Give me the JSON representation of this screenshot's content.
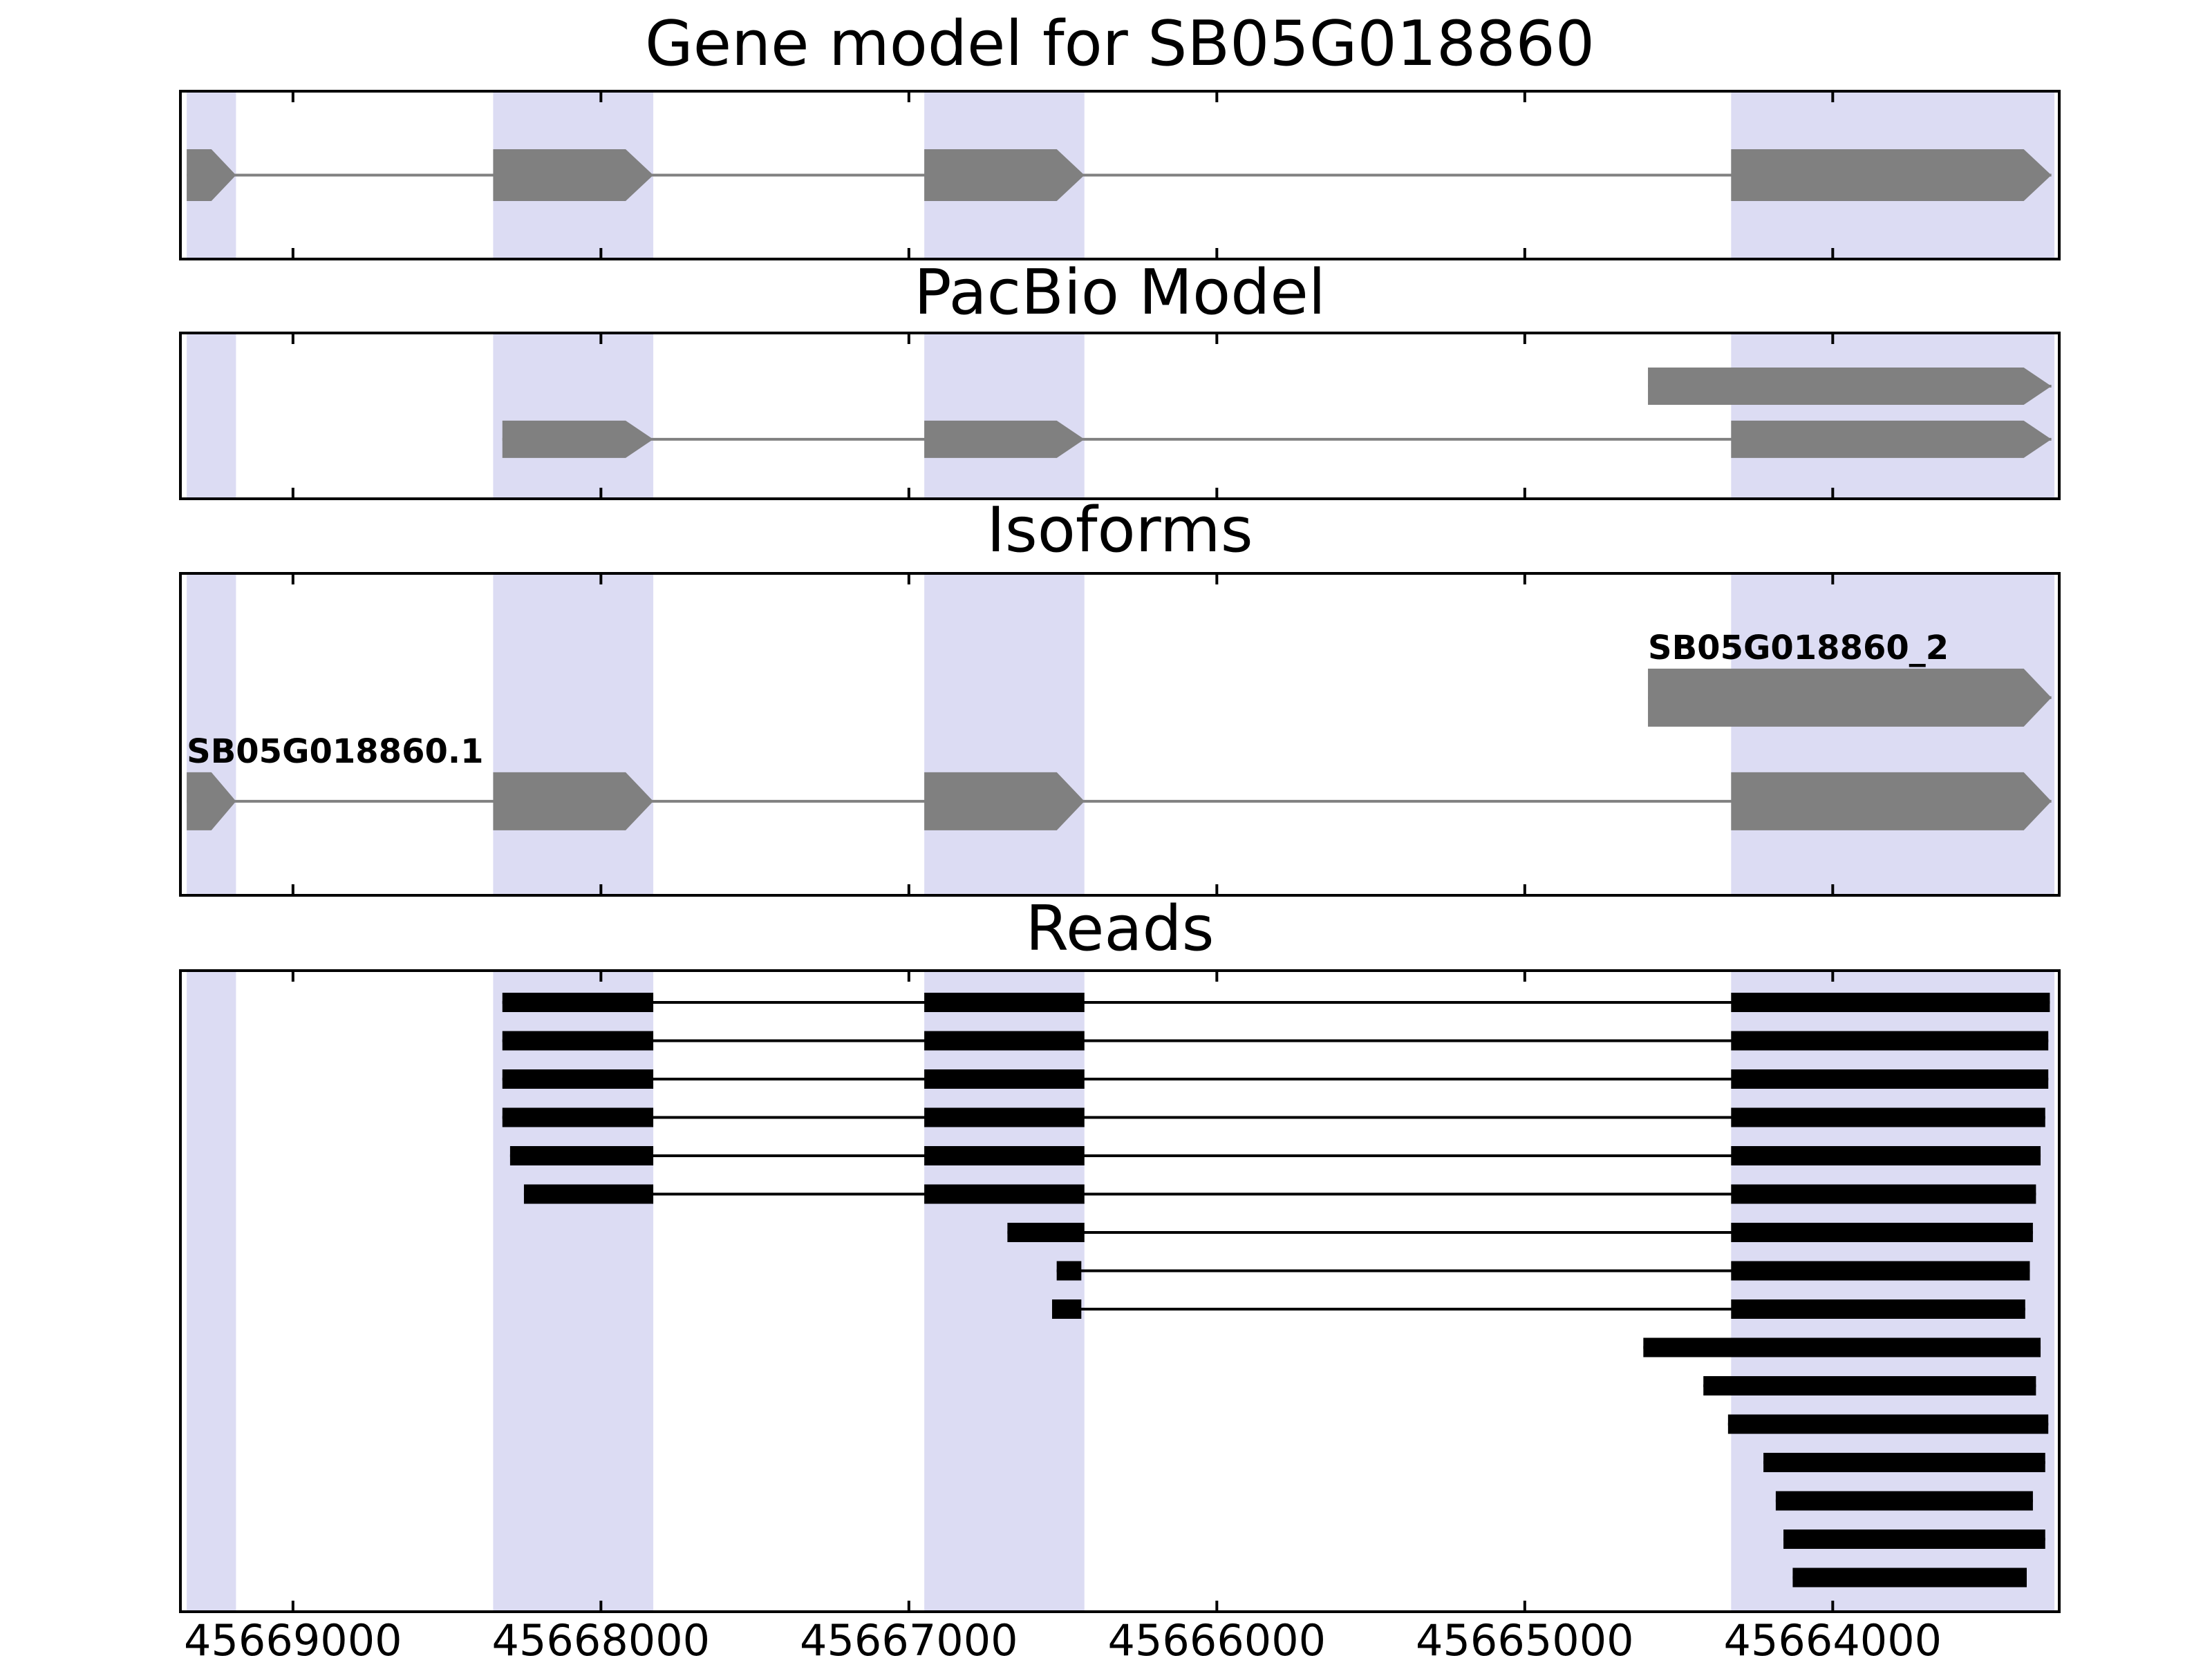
{
  "colors": {
    "exon": "#808080",
    "intron_line": "#808080",
    "read": "#000000",
    "highlight": "#dcdcf3",
    "axis": "#000000",
    "background": "#ffffff"
  },
  "axis": {
    "domain_min": 45663260,
    "domain_max": 45669370,
    "reversed": true,
    "ticks": [
      45669000,
      45668000,
      45667000,
      45666000,
      45665000,
      45664000
    ],
    "tick_labels": [
      "45669000",
      "45668000",
      "45667000",
      "45666000",
      "45665000",
      "45664000"
    ]
  },
  "highlight_regions": [
    {
      "start": 45669345,
      "end": 45669185
    },
    {
      "start": 45668350,
      "end": 45667830
    },
    {
      "start": 45666950,
      "end": 45666430
    },
    {
      "start": 45664330,
      "end": 45663280
    }
  ],
  "chart_data": [
    {
      "type": "gene_model",
      "title": "Gene model for SB05G018860",
      "features": [
        {
          "name": "SB05G018860",
          "label": "",
          "row": 0.5,
          "exons": [
            [
              45669345,
              45669185
            ],
            [
              45668350,
              45667830
            ],
            [
              45666950,
              45666430
            ],
            [
              45664330,
              45663290
            ]
          ]
        }
      ]
    },
    {
      "type": "transcripts",
      "title": "PacBio Model",
      "features": [
        {
          "name": "pacbio_model_short",
          "label": "",
          "row": 0.324,
          "exons": [
            [
              45664600,
              45663290
            ]
          ]
        },
        {
          "name": "pacbio_model_long",
          "label": "",
          "row": 0.639,
          "exons": [
            [
              45668320,
              45667830
            ],
            [
              45666950,
              45666430
            ],
            [
              45664330,
              45663290
            ]
          ]
        }
      ]
    },
    {
      "type": "transcripts",
      "title": "Isoforms",
      "features": [
        {
          "name": "SB05G018860_2",
          "label": "SB05G018860_2",
          "row": 0.387,
          "exons": [
            [
              45664600,
              45663290
            ]
          ]
        },
        {
          "name": "SB05G018860.1",
          "label": "SB05G018860.1",
          "row": 0.706,
          "exons": [
            [
              45669345,
              45669185
            ],
            [
              45668350,
              45667830
            ],
            [
              45666950,
              45666430
            ],
            [
              45664330,
              45663290
            ]
          ]
        }
      ]
    },
    {
      "type": "reads",
      "title": "Reads",
      "reads": [
        [
          [
            45668320,
            45667830
          ],
          [
            45666950,
            45666430
          ],
          [
            45664330,
            45663295
          ]
        ],
        [
          [
            45668320,
            45667830
          ],
          [
            45666950,
            45666430
          ],
          [
            45664330,
            45663300
          ]
        ],
        [
          [
            45668320,
            45667830
          ],
          [
            45666950,
            45666430
          ],
          [
            45664330,
            45663300
          ]
        ],
        [
          [
            45668320,
            45667830
          ],
          [
            45666950,
            45666430
          ],
          [
            45664330,
            45663310
          ]
        ],
        [
          [
            45668295,
            45667830
          ],
          [
            45666950,
            45666430
          ],
          [
            45664330,
            45663325
          ]
        ],
        [
          [
            45668250,
            45667830
          ],
          [
            45666950,
            45666430
          ],
          [
            45664330,
            45663340
          ]
        ],
        [
          [
            45666680,
            45666430
          ],
          [
            45664330,
            45663350
          ]
        ],
        [
          [
            45666520,
            45666440
          ],
          [
            45664330,
            45663360
          ]
        ],
        [
          [
            45666535,
            45666440
          ],
          [
            45664330,
            45663375
          ]
        ],
        [
          [
            45664615,
            45663325
          ]
        ],
        [
          [
            45664420,
            45663340
          ]
        ],
        [
          [
            45664340,
            45663300
          ]
        ],
        [
          [
            45664225,
            45663310
          ]
        ],
        [
          [
            45664185,
            45663350
          ]
        ],
        [
          [
            45664160,
            45663310
          ]
        ],
        [
          [
            45664130,
            45663370
          ]
        ]
      ]
    }
  ]
}
